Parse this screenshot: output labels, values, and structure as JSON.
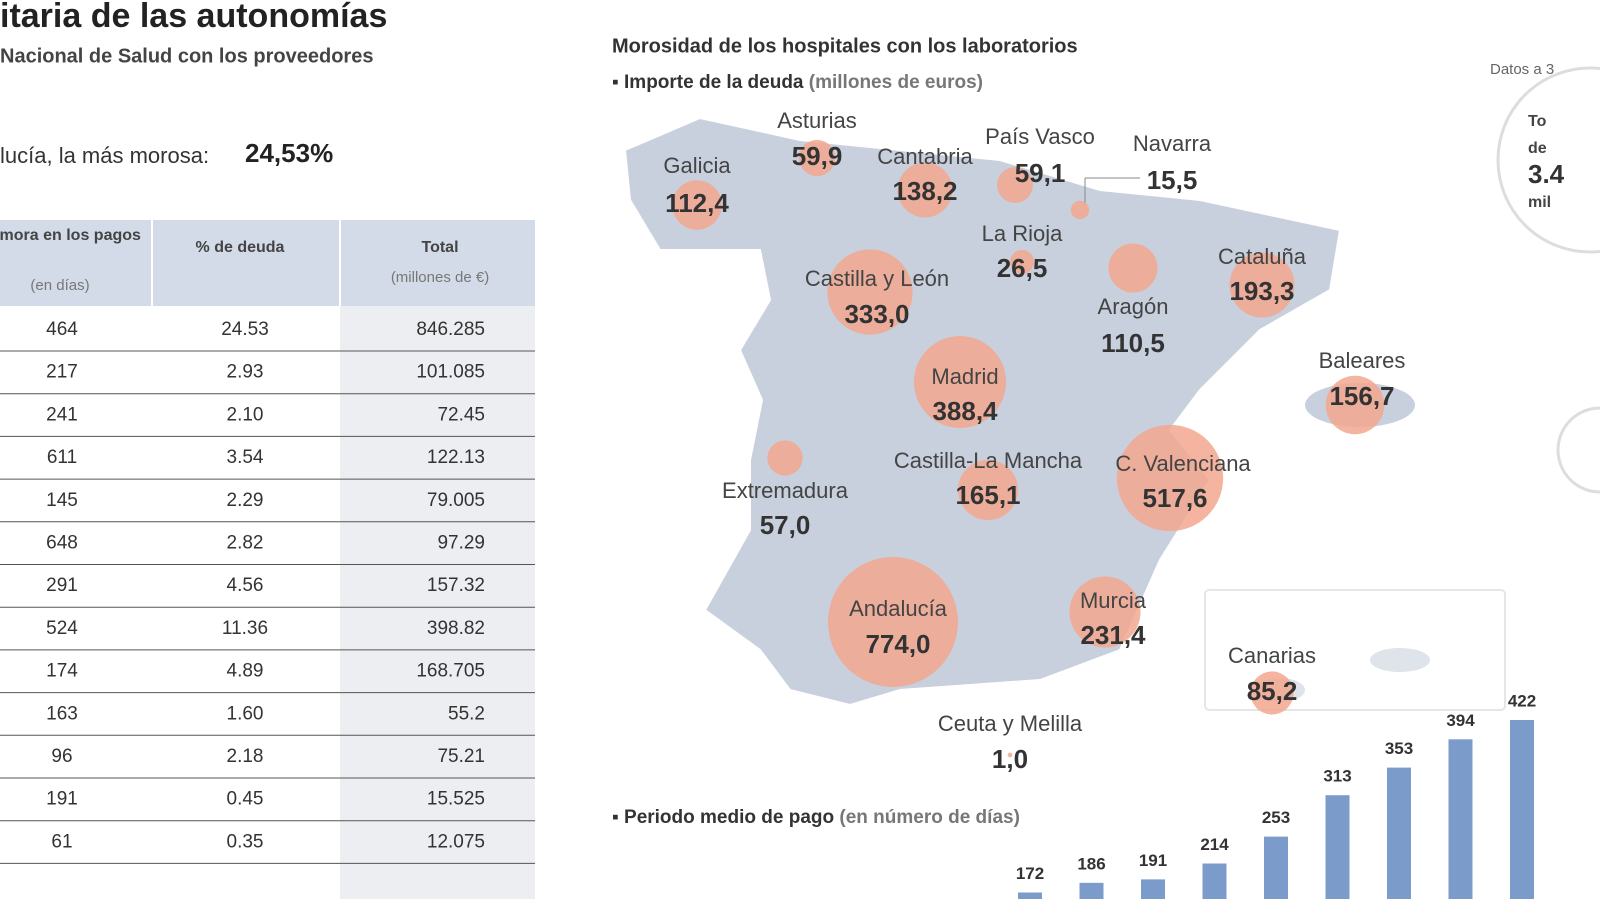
{
  "header": {
    "title": "itaria de las autonomías",
    "subtitle": "Nacional de Salud con los proveedores",
    "highlight_text": "lucía, la más morosa:",
    "highlight_value": "24,53%"
  },
  "table": {
    "columns": [
      {
        "title": "Demora en los pagos",
        "unit": "(en días)"
      },
      {
        "title": "% de deuda"
      },
      {
        "title": "Total",
        "unit": "(millones de €)"
      }
    ],
    "rows": [
      [
        "464",
        "24.53",
        "846.285"
      ],
      [
        "217",
        "2.93",
        "101.085"
      ],
      [
        "241",
        "2.10",
        "72.45"
      ],
      [
        "611",
        "3.54",
        "122.13"
      ],
      [
        "145",
        "2.29",
        "79.005"
      ],
      [
        "648",
        "2.82",
        "97.29"
      ],
      [
        "291",
        "4.56",
        "157.32"
      ],
      [
        "524",
        "11.36",
        "398.82"
      ],
      [
        "174",
        "4.89",
        "168.705"
      ],
      [
        "163",
        "1.60",
        "55.2"
      ],
      [
        "96",
        "2.18",
        "75.21"
      ],
      [
        "191",
        "0.45",
        "15.525"
      ],
      [
        "61",
        "0.35",
        "12.075"
      ]
    ]
  },
  "chart_data": [
    {
      "type": "bubble_map",
      "title": "Morosidad de los hospitales con los laboratorios",
      "subtitle": "Importe de la deuda",
      "unit": "(millones de euros)",
      "note": "Datos a 3",
      "total_box": [
        "To",
        "de",
        "3.4",
        "mil"
      ],
      "color": "#f2a78e",
      "categories": [
        "Galicia",
        "Asturias",
        "Cantabria",
        "País Vasco",
        "Navarra",
        "La Rioja",
        "Castilla y León",
        "Aragón",
        "Cataluña",
        "Madrid",
        "Baleares",
        "Extremadura",
        "Castilla-La Mancha",
        "C. Valenciana",
        "Andalucía",
        "Murcia",
        "Canarias",
        "Ceuta y Melilla"
      ],
      "values": [
        112.4,
        59.9,
        138.2,
        59.1,
        15.5,
        26.5,
        333.0,
        110.5,
        193.3,
        388.4,
        156.7,
        57.0,
        165.1,
        517.6,
        774.0,
        231.4,
        85.2,
        1.0
      ],
      "value_labels": [
        "112,4",
        "59,9",
        "138,2",
        "59,1",
        "15,5",
        "26,5",
        "333,0",
        "110,5",
        "193,3",
        "388,4",
        "156,7",
        "57,0",
        "165,1",
        "517,6",
        "774,0",
        "231,4",
        "85,2",
        "1,0"
      ]
    },
    {
      "type": "bar",
      "title": "Periodo medio de pago",
      "unit": "(en número de días)",
      "color": "#7b9bcb",
      "values": [
        172,
        186,
        191,
        214,
        253,
        313,
        353,
        394,
        422
      ]
    }
  ]
}
